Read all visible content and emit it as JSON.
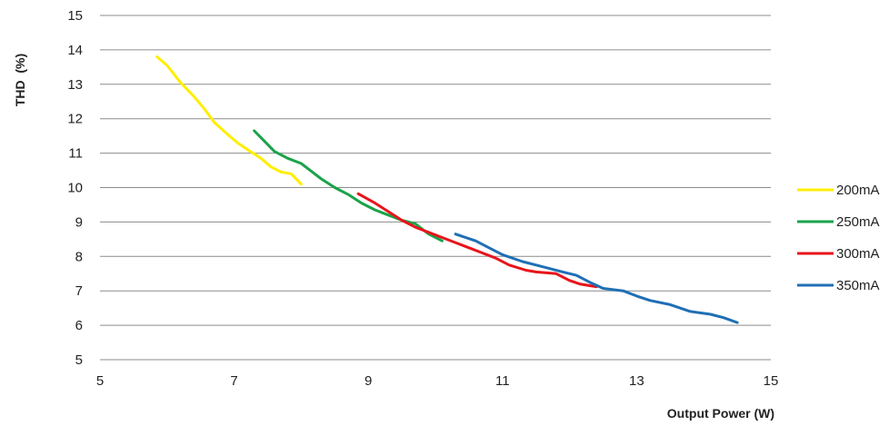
{
  "chart_data": {
    "type": "line",
    "title": "",
    "xlabel": "Output Power (W)",
    "ylabel": "THD  (%)",
    "xlim": [
      5,
      15
    ],
    "ylim": [
      5,
      15
    ],
    "x_ticks": [
      5,
      7,
      9,
      11,
      13,
      15
    ],
    "y_ticks": [
      5,
      6,
      7,
      8,
      9,
      10,
      11,
      12,
      13,
      14,
      15
    ],
    "grid": "horizontal",
    "legend_position": "right",
    "series": [
      {
        "name": "200mA",
        "color": "#ffee00",
        "points": [
          [
            5.85,
            13.8
          ],
          [
            6.0,
            13.55
          ],
          [
            6.2,
            13.05
          ],
          [
            6.4,
            12.65
          ],
          [
            6.55,
            12.3
          ],
          [
            6.7,
            11.9
          ],
          [
            6.9,
            11.55
          ],
          [
            7.05,
            11.3
          ],
          [
            7.2,
            11.1
          ],
          [
            7.4,
            10.85
          ],
          [
            7.55,
            10.6
          ],
          [
            7.7,
            10.45
          ],
          [
            7.85,
            10.4
          ],
          [
            8.0,
            10.1
          ]
        ]
      },
      {
        "name": "250mA",
        "color": "#1aa34a",
        "points": [
          [
            7.3,
            11.65
          ],
          [
            7.45,
            11.35
          ],
          [
            7.6,
            11.05
          ],
          [
            7.8,
            10.85
          ],
          [
            8.0,
            10.7
          ],
          [
            8.1,
            10.55
          ],
          [
            8.3,
            10.25
          ],
          [
            8.5,
            10.0
          ],
          [
            8.7,
            9.8
          ],
          [
            8.9,
            9.55
          ],
          [
            9.1,
            9.35
          ],
          [
            9.3,
            9.2
          ],
          [
            9.5,
            9.05
          ],
          [
            9.7,
            8.95
          ],
          [
            9.9,
            8.65
          ],
          [
            10.1,
            8.45
          ]
        ]
      },
      {
        "name": "300mA",
        "color": "#e8141b",
        "points": [
          [
            8.85,
            9.82
          ],
          [
            9.1,
            9.55
          ],
          [
            9.3,
            9.3
          ],
          [
            9.5,
            9.05
          ],
          [
            9.7,
            8.85
          ],
          [
            9.9,
            8.7
          ],
          [
            10.1,
            8.55
          ],
          [
            10.3,
            8.4
          ],
          [
            10.5,
            8.25
          ],
          [
            10.7,
            8.1
          ],
          [
            10.9,
            7.95
          ],
          [
            11.1,
            7.75
          ],
          [
            11.35,
            7.6
          ],
          [
            11.5,
            7.55
          ],
          [
            11.8,
            7.5
          ],
          [
            12.0,
            7.3
          ],
          [
            12.15,
            7.2
          ],
          [
            12.3,
            7.15
          ],
          [
            12.4,
            7.12
          ]
        ]
      },
      {
        "name": "350mA",
        "color": "#1f6fb5",
        "points": [
          [
            10.3,
            8.65
          ],
          [
            10.6,
            8.45
          ],
          [
            10.8,
            8.25
          ],
          [
            11.0,
            8.05
          ],
          [
            11.3,
            7.85
          ],
          [
            11.6,
            7.7
          ],
          [
            11.9,
            7.55
          ],
          [
            12.1,
            7.45
          ],
          [
            12.3,
            7.25
          ],
          [
            12.5,
            7.07
          ],
          [
            12.8,
            7.0
          ],
          [
            13.0,
            6.85
          ],
          [
            13.2,
            6.72
          ],
          [
            13.5,
            6.6
          ],
          [
            13.8,
            6.4
          ],
          [
            14.1,
            6.32
          ],
          [
            14.3,
            6.22
          ],
          [
            14.5,
            6.08
          ]
        ]
      }
    ]
  }
}
